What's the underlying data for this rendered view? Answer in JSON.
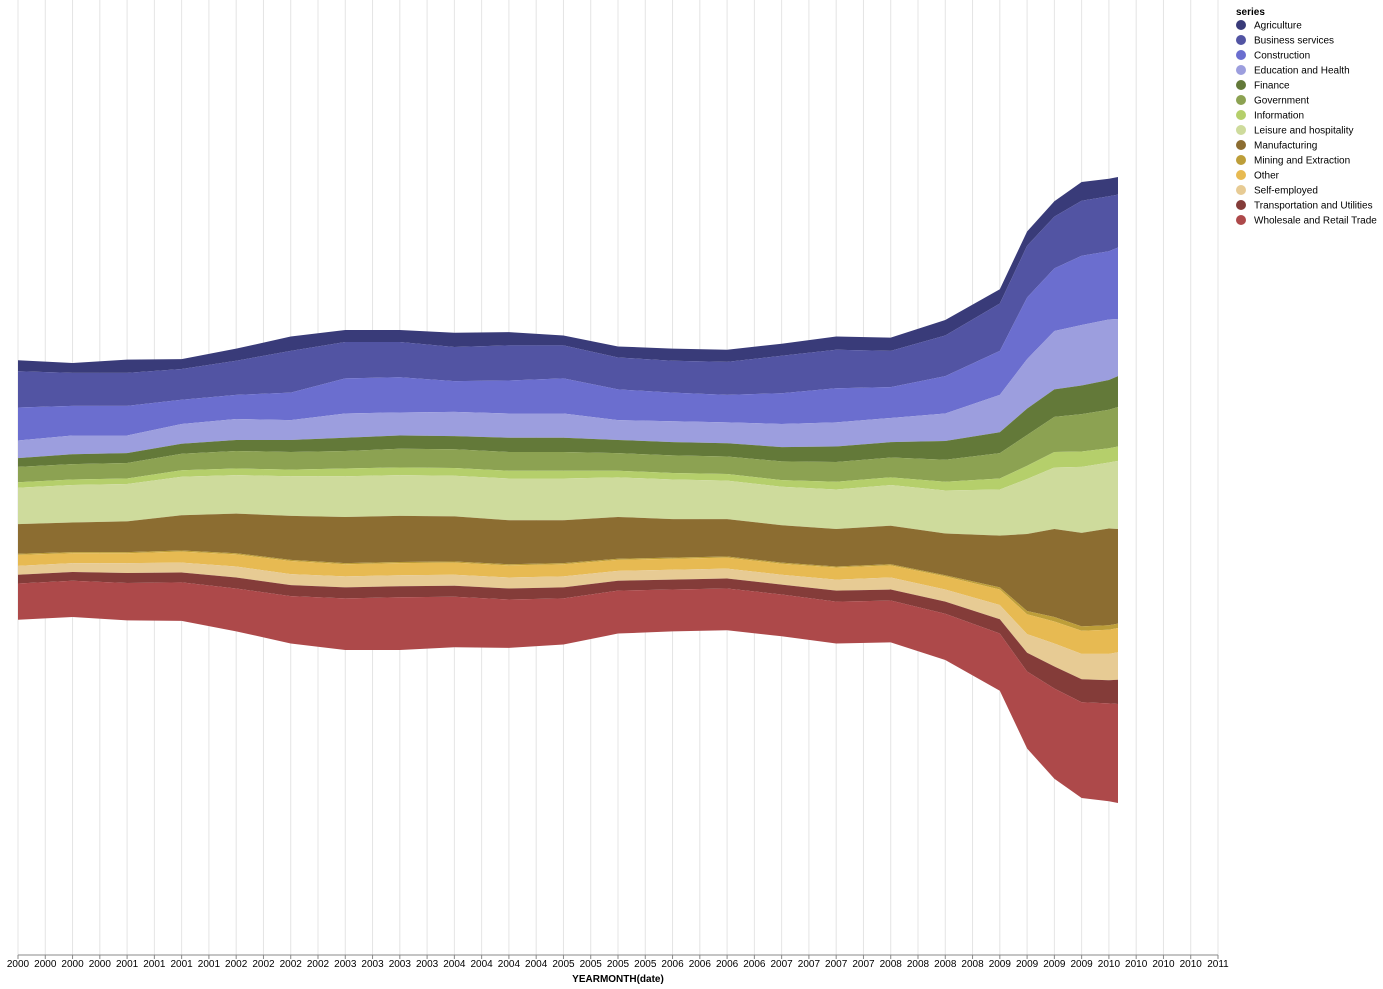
{
  "chart_data": {
    "type": "area",
    "variant": "streamgraph (stacked, center offset)",
    "xlabel": "YEARMONTH(date)",
    "x_ticks": [
      "2000",
      "2000",
      "2000",
      "2000",
      "2001",
      "2001",
      "2001",
      "2001",
      "2002",
      "2002",
      "2002",
      "2002",
      "2003",
      "2003",
      "2003",
      "2003",
      "2004",
      "2004",
      "2004",
      "2004",
      "2005",
      "2005",
      "2005",
      "2005",
      "2006",
      "2006",
      "2006",
      "2006",
      "2007",
      "2007",
      "2007",
      "2007",
      "2008",
      "2008",
      "2008",
      "2008",
      "2009",
      "2009",
      "2009",
      "2009",
      "2010",
      "2010",
      "2010",
      "2010",
      "2011"
    ],
    "legend": {
      "title": "series",
      "placement": "right"
    },
    "grid": "vertical",
    "x_range": [
      "2000-01",
      "2010-02"
    ],
    "x_domain": [
      "2000-01",
      "2011-01"
    ],
    "series": [
      {
        "name": "Agriculture",
        "color": "#393b79",
        "values": [
          10,
          9,
          12,
          9,
          11,
          13,
          11,
          11,
          13,
          12,
          9,
          10,
          11,
          11,
          11,
          12,
          12,
          14,
          13,
          13,
          14,
          17,
          16,
          16
        ]
      },
      {
        "name": "Business services",
        "color": "#5254a3",
        "values": [
          33,
          30,
          30,
          28,
          31,
          38,
          33,
          32,
          31,
          32,
          30,
          29,
          29,
          30,
          34,
          35,
          33,
          37,
          43,
          47,
          47,
          50,
          50,
          48
        ]
      },
      {
        "name": "Construction",
        "color": "#6b6ecf",
        "values": [
          30,
          27,
          27,
          22,
          22,
          25,
          32,
          32,
          28,
          30,
          32,
          28,
          26,
          25,
          28,
          31,
          28,
          34,
          40,
          56,
          57,
          63,
          62,
          65
        ]
      },
      {
        "name": "Education and Health",
        "color": "#9c9ede",
        "values": [
          16,
          17,
          16,
          18,
          19,
          18,
          22,
          21,
          22,
          22,
          22,
          18,
          19,
          19,
          21,
          22,
          22,
          25,
          34,
          45,
          53,
          55,
          55,
          52
        ]
      },
      {
        "name": "Finance",
        "color": "#637939",
        "values": [
          8,
          9,
          9,
          9,
          10,
          11,
          12,
          12,
          12,
          13,
          13,
          12,
          12,
          12,
          13,
          14,
          14,
          17,
          19,
          24,
          25,
          26,
          27,
          28
        ]
      },
      {
        "name": "Government",
        "color": "#8ca252",
        "values": [
          14,
          14,
          14,
          15,
          16,
          16,
          16,
          17,
          17,
          17,
          17,
          16,
          16,
          16,
          17,
          18,
          18,
          20,
          23,
          28,
          32,
          34,
          35,
          36
        ]
      },
      {
        "name": "Information",
        "color": "#b5cf6b",
        "values": [
          5,
          5,
          5,
          6,
          6,
          6,
          7,
          7,
          7,
          7,
          7,
          6,
          6,
          6,
          6,
          7,
          7,
          8,
          10,
          12,
          14,
          14,
          13,
          13
        ]
      },
      {
        "name": "Leisure and hospitality",
        "color": "#cedb9c",
        "values": [
          33,
          34,
          34,
          35,
          35,
          36,
          37,
          37,
          37,
          38,
          38,
          36,
          36,
          35,
          35,
          36,
          37,
          39,
          42,
          50,
          56,
          60,
          60,
          62
        ]
      },
      {
        "name": "Manufacturing",
        "color": "#8c6d31",
        "values": [
          27,
          27,
          28,
          32,
          36,
          40,
          42,
          42,
          41,
          40,
          39,
          38,
          35,
          34,
          34,
          34,
          35,
          38,
          47,
          70,
          80,
          85,
          88,
          86
        ]
      },
      {
        "name": "Mining and Extraction",
        "color": "#bd9e39",
        "values": [
          1,
          1,
          1,
          1,
          1,
          1,
          1,
          1,
          1,
          1,
          1,
          1,
          1,
          1,
          1,
          1,
          1,
          1,
          2,
          3,
          4,
          4,
          4,
          4
        ]
      },
      {
        "name": "Other",
        "color": "#e7ba52",
        "values": [
          10,
          9,
          9,
          10,
          11,
          12,
          11,
          11,
          11,
          11,
          11,
          10,
          10,
          10,
          10,
          11,
          11,
          12,
          14,
          18,
          20,
          21,
          22,
          22
        ]
      },
      {
        "name": "Self-employed",
        "color": "#e7cb94",
        "values": [
          8,
          8,
          9,
          9,
          10,
          10,
          10,
          10,
          10,
          10,
          10,
          9,
          9,
          9,
          9,
          10,
          11,
          11,
          13,
          17,
          21,
          23,
          24,
          25
        ]
      },
      {
        "name": "Transportation and Utilities",
        "color": "#843c39",
        "values": [
          8,
          8,
          9,
          9,
          10,
          10,
          10,
          10,
          10,
          10,
          10,
          9,
          9,
          9,
          9,
          10,
          10,
          11,
          13,
          17,
          20,
          21,
          21,
          22
        ]
      },
      {
        "name": "Wholesale and Retail Trade",
        "color": "#ad494a",
        "values": [
          33,
          33,
          34,
          35,
          39,
          43,
          47,
          48,
          46,
          44,
          42,
          39,
          38,
          38,
          38,
          38,
          38,
          42,
          52,
          70,
          82,
          87,
          89,
          90
        ]
      }
    ],
    "x_samples": [
      "2000-01",
      "2000-07",
      "2001-01",
      "2001-07",
      "2002-01",
      "2002-07",
      "2003-01",
      "2003-07",
      "2004-01",
      "2004-07",
      "2005-01",
      "2005-07",
      "2006-01",
      "2006-07",
      "2007-01",
      "2007-07",
      "2008-01",
      "2008-07",
      "2009-01",
      "2009-04",
      "2009-07",
      "2009-10",
      "2010-01",
      "2010-02"
    ]
  }
}
